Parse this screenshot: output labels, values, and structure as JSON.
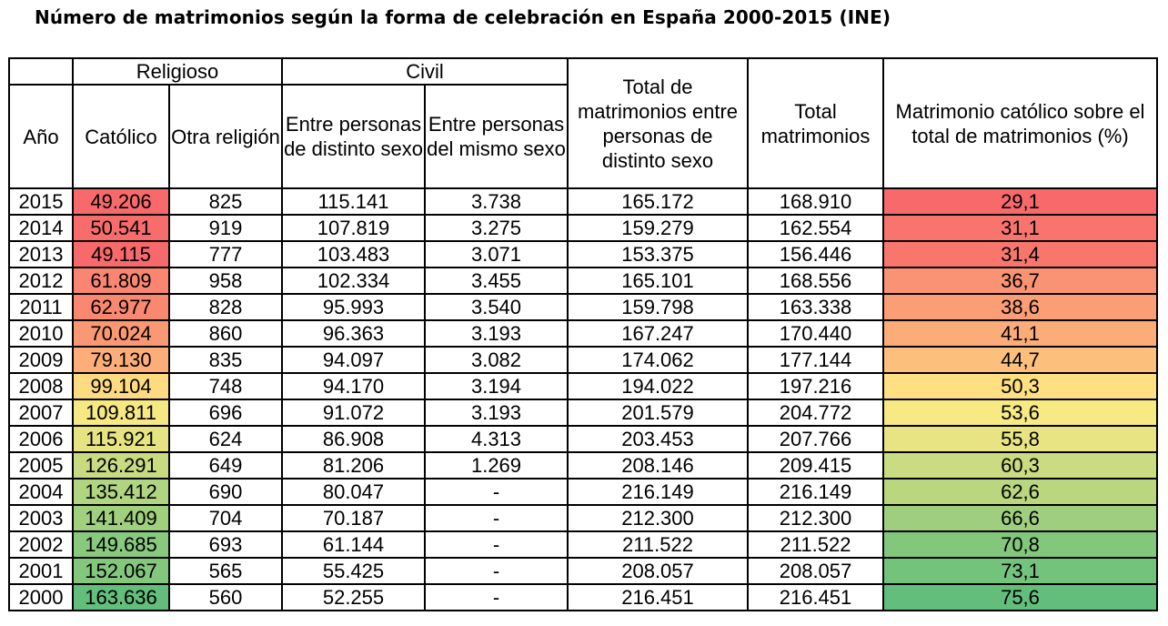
{
  "title": "Número de matrimonios según la forma de celebración en España 2000-2015 (INE)",
  "headers": {
    "anio": "Año",
    "religioso": "Religioso",
    "civil": "Civil",
    "catolico": "Católico",
    "otra_religion": "Otra religión",
    "civil_distinto": "Entre personas de distinto sexo",
    "civil_mismo": "Entre personas del mismo sexo",
    "total_distinto": "Total de matrimonios entre personas de distinto sexo",
    "total": "Total matrimonios",
    "pct_catolico": "Matrimonio católico sobre el total de matrimonios (%)"
  },
  "colors": {
    "scale_low": "#f8696b",
    "scale_mid": "#ffeb84",
    "scale_high": "#63be7b"
  },
  "chart_data": {
    "type": "table",
    "title": "Número de matrimonios según la forma de celebración en España 2000-2015 (INE)",
    "columns": [
      "Año",
      "Católico",
      "Otra religión",
      "Entre personas de distinto sexo",
      "Entre personas del mismo sexo",
      "Total de matrimonios entre personas de distinto sexo",
      "Total matrimonios",
      "Matrimonio católico sobre el total de matrimonios (%)"
    ],
    "rows": [
      {
        "year": "2015",
        "catolico": "49.206",
        "otra": "825",
        "civil_distinto": "115.141",
        "civil_mismo": "3.738",
        "total_distinto": "165.172",
        "total": "168.910",
        "pct": "29,1"
      },
      {
        "year": "2014",
        "catolico": "50.541",
        "otra": "919",
        "civil_distinto": "107.819",
        "civil_mismo": "3.275",
        "total_distinto": "159.279",
        "total": "162.554",
        "pct": "31,1"
      },
      {
        "year": "2013",
        "catolico": "49.115",
        "otra": "777",
        "civil_distinto": "103.483",
        "civil_mismo": "3.071",
        "total_distinto": "153.375",
        "total": "156.446",
        "pct": "31,4"
      },
      {
        "year": "2012",
        "catolico": "61.809",
        "otra": "958",
        "civil_distinto": "102.334",
        "civil_mismo": "3.455",
        "total_distinto": "165.101",
        "total": "168.556",
        "pct": "36,7"
      },
      {
        "year": "2011",
        "catolico": "62.977",
        "otra": "828",
        "civil_distinto": "95.993",
        "civil_mismo": "3.540",
        "total_distinto": "159.798",
        "total": "163.338",
        "pct": "38,6"
      },
      {
        "year": "2010",
        "catolico": "70.024",
        "otra": "860",
        "civil_distinto": "96.363",
        "civil_mismo": "3.193",
        "total_distinto": "167.247",
        "total": "170.440",
        "pct": "41,1"
      },
      {
        "year": "2009",
        "catolico": "79.130",
        "otra": "835",
        "civil_distinto": "94.097",
        "civil_mismo": "3.082",
        "total_distinto": "174.062",
        "total": "177.144",
        "pct": "44,7"
      },
      {
        "year": "2008",
        "catolico": "99.104",
        "otra": "748",
        "civil_distinto": "94.170",
        "civil_mismo": "3.194",
        "total_distinto": "194.022",
        "total": "197.216",
        "pct": "50,3"
      },
      {
        "year": "2007",
        "catolico": "109.811",
        "otra": "696",
        "civil_distinto": "91.072",
        "civil_mismo": "3.193",
        "total_distinto": "201.579",
        "total": "204.772",
        "pct": "53,6"
      },
      {
        "year": "2006",
        "catolico": "115.921",
        "otra": "624",
        "civil_distinto": "86.908",
        "civil_mismo": "4.313",
        "total_distinto": "203.453",
        "total": "207.766",
        "pct": "55,8"
      },
      {
        "year": "2005",
        "catolico": "126.291",
        "otra": "649",
        "civil_distinto": "81.206",
        "civil_mismo": "1.269",
        "total_distinto": "208.146",
        "total": "209.415",
        "pct": "60,3"
      },
      {
        "year": "2004",
        "catolico": "135.412",
        "otra": "690",
        "civil_distinto": "80.047",
        "civil_mismo": "-",
        "total_distinto": "216.149",
        "total": "216.149",
        "pct": "62,6"
      },
      {
        "year": "2003",
        "catolico": "141.409",
        "otra": "704",
        "civil_distinto": "70.187",
        "civil_mismo": "-",
        "total_distinto": "212.300",
        "total": "212.300",
        "pct": "66,6"
      },
      {
        "year": "2002",
        "catolico": "149.685",
        "otra": "693",
        "civil_distinto": "61.144",
        "civil_mismo": "-",
        "total_distinto": "211.522",
        "total": "211.522",
        "pct": "70,8"
      },
      {
        "year": "2001",
        "catolico": "152.067",
        "otra": "565",
        "civil_distinto": "55.425",
        "civil_mismo": "-",
        "total_distinto": "208.057",
        "total": "208.057",
        "pct": "73,1"
      },
      {
        "year": "2000",
        "catolico": "163.636",
        "otra": "560",
        "civil_distinto": "52.255",
        "civil_mismo": "-",
        "total_distinto": "216.451",
        "total": "216.451",
        "pct": "75,6"
      }
    ]
  }
}
